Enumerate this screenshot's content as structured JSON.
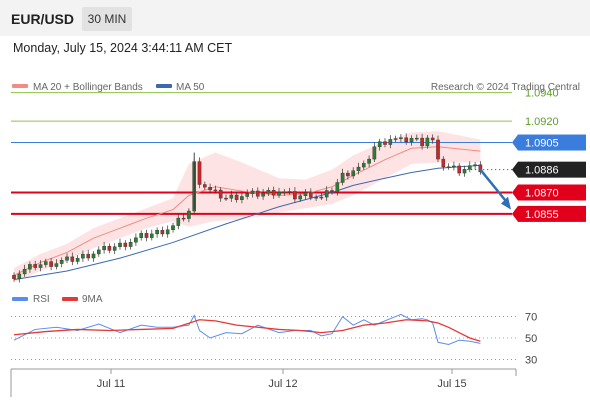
{
  "header": {
    "symbol": "EUR/USD",
    "timeframe": "30 MIN",
    "datetime": "Monday, July 15, 2024 3:44:11 AM CET"
  },
  "legend": {
    "ma20_label": "MA 20 + Bollinger Bands",
    "ma50_label": "MA 50",
    "copyright": "Research © 2024 Trading Central"
  },
  "colors": {
    "ma20": "#f08c84",
    "ma50": "#3d68b0",
    "band_fill": "#fde0e0",
    "candle_up": "#2e7d32",
    "candle_down": "#c62828",
    "target_line": "#8bc34a",
    "pivot_line": "#3b7ddd",
    "support_line": "#e0001b",
    "price_tag": "#222222",
    "rsi": "#5b8def",
    "rsi_ma": "#e53935",
    "arrow": "#2f6fb6"
  },
  "chart_data": [
    {
      "type": "line",
      "title": "EUR/USD 30 MIN",
      "x_ticks": [
        "Jul 11",
        "Jul 12",
        "Jul 15"
      ],
      "ylim": [
        1.0808,
        1.0946
      ],
      "price_levels": [
        {
          "value": 1.094,
          "label": "1.0940",
          "role": "target-2"
        },
        {
          "value": 1.092,
          "label": "1.0920",
          "role": "target-1"
        },
        {
          "value": 1.0905,
          "label": "1.0905",
          "role": "pivot"
        },
        {
          "value": 1.0886,
          "label": "1.0886",
          "role": "last-price"
        },
        {
          "value": 1.087,
          "label": "1.0870",
          "role": "support-1"
        },
        {
          "value": 1.0855,
          "label": "1.0855",
          "role": "support-2"
        }
      ],
      "series": [
        {
          "name": "MA 20",
          "x": [
            0,
            5,
            10,
            15,
            20,
            25,
            30,
            33,
            38,
            43,
            50,
            55,
            60,
            64,
            70,
            75,
            80,
            88
          ],
          "values": [
            1.0812,
            1.0821,
            1.0828,
            1.0838,
            1.0845,
            1.0852,
            1.0858,
            1.0868,
            1.0874,
            1.0871,
            1.0868,
            1.0869,
            1.0874,
            1.0882,
            1.0893,
            1.0901,
            1.0902,
            1.0899
          ]
        },
        {
          "name": "MA 50",
          "x": [
            0,
            10,
            20,
            30,
            40,
            50,
            55,
            60,
            64,
            70,
            75,
            80,
            88
          ],
          "values": [
            1.0809,
            1.0815,
            1.0824,
            1.0835,
            1.0848,
            1.086,
            1.0865,
            1.087,
            1.0875,
            1.088,
            1.0884,
            1.0887,
            1.0889
          ]
        },
        {
          "name": "Price",
          "x": [
            0,
            4,
            8,
            12,
            16,
            20,
            24,
            27,
            30,
            33,
            34,
            35,
            37,
            40,
            43,
            46,
            50,
            53,
            56,
            58,
            60,
            62,
            64,
            66,
            68,
            71,
            73,
            75,
            77,
            78,
            79,
            80,
            82,
            84,
            86,
            88
          ],
          "values": [
            1.0812,
            1.0819,
            1.0821,
            1.0824,
            1.0829,
            1.0833,
            1.0839,
            1.0842,
            1.0846,
            1.0857,
            1.089,
            1.0878,
            1.0871,
            1.0866,
            1.0868,
            1.0869,
            1.0871,
            1.0867,
            1.0869,
            1.0866,
            1.0872,
            1.0882,
            1.0886,
            1.0888,
            1.0902,
            1.0908,
            1.0906,
            1.0908,
            1.0905,
            1.0909,
            1.0906,
            1.0891,
            1.0888,
            1.0886,
            1.0888,
            1.0886
          ]
        }
      ]
    },
    {
      "type": "line",
      "title": "",
      "y_ticks": [
        70,
        50,
        30
      ],
      "ylim": [
        22,
        78
      ],
      "series": [
        {
          "name": "RSI",
          "x": [
            0,
            4,
            8,
            12,
            16,
            20,
            24,
            27,
            30,
            33,
            34,
            35,
            37,
            40,
            43,
            46,
            50,
            53,
            56,
            58,
            60,
            62,
            64,
            66,
            68,
            71,
            73,
            75,
            77,
            78,
            79,
            80,
            82,
            84,
            86,
            88
          ],
          "values": [
            48,
            58,
            60,
            57,
            63,
            55,
            62,
            60,
            60,
            62,
            71,
            57,
            50,
            55,
            54,
            62,
            55,
            57,
            57,
            52,
            54,
            70,
            62,
            67,
            62,
            68,
            72,
            67,
            68,
            67,
            64,
            46,
            44,
            48,
            47,
            45
          ]
        },
        {
          "name": "9MA",
          "x": [
            0,
            6,
            12,
            18,
            24,
            30,
            35,
            38,
            42,
            46,
            50,
            54,
            58,
            62,
            66,
            70,
            74,
            78,
            80,
            82,
            84,
            86,
            88
          ],
          "values": [
            53,
            56,
            58,
            57,
            58,
            59,
            67,
            66,
            62,
            60,
            58,
            57,
            55,
            57,
            62,
            64,
            67,
            66,
            64,
            60,
            55,
            50,
            47
          ]
        }
      ]
    }
  ]
}
